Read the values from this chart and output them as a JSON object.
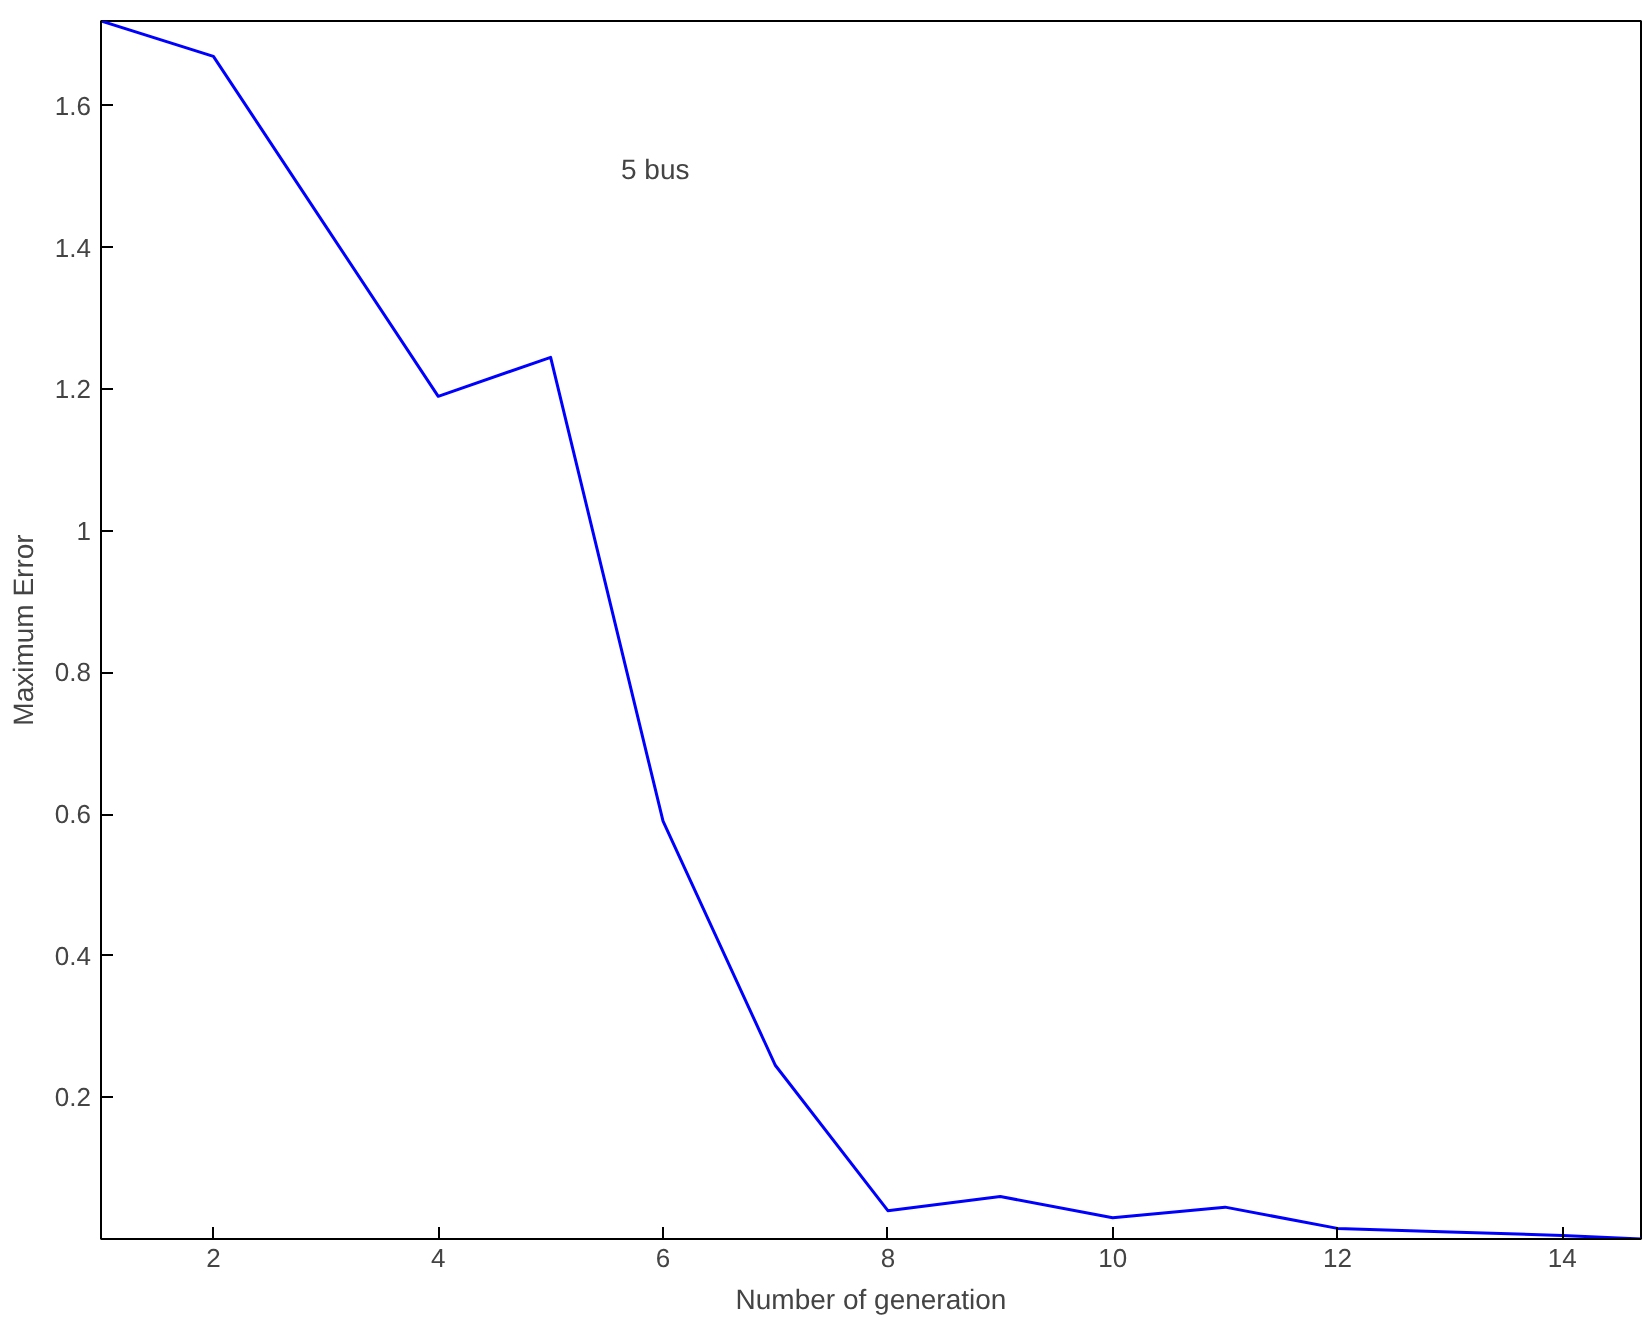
{
  "chart_data": {
    "type": "line",
    "xlabel": "Number of generation",
    "ylabel": "Maximum Error",
    "x": [
      1,
      2,
      3,
      4,
      5,
      6,
      7,
      8,
      9,
      10,
      11,
      12,
      13,
      14,
      14.7
    ],
    "series": [
      {
        "color": "#0000ff",
        "values": [
          1.72,
          1.67,
          1.43,
          1.19,
          1.245,
          0.59,
          0.245,
          0.04,
          0.06,
          0.03,
          0.045,
          0.015,
          0.01,
          0.005,
          0.0
        ]
      }
    ],
    "xlim": [
      1,
      14.7
    ],
    "ylim": [
      0,
      1.72
    ],
    "xticks": [
      2,
      4,
      6,
      8,
      10,
      12,
      14
    ],
    "yticks": [
      0.2,
      0.4,
      0.6,
      0.8,
      1,
      1.2,
      1.4,
      1.6
    ],
    "annotations": [
      "5 bus"
    ],
    "grid": false
  }
}
